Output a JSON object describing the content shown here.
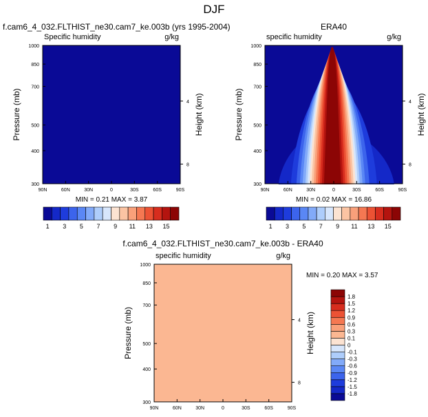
{
  "figure": {
    "title": "DJF"
  },
  "palettes": {
    "abs_colors": [
      "#0a0a96",
      "#1428c8",
      "#1e3cdc",
      "#3c64ec",
      "#5a87f5",
      "#82aaf9",
      "#aecdfb",
      "#d7e6fc",
      "#fce3d2",
      "#fbc4a3",
      "#f9a07a",
      "#f57852",
      "#ec5234",
      "#d72d1e",
      "#b4140f",
      "#8c0505"
    ],
    "abs_labels": [
      "1",
      "3",
      "5",
      "7",
      "9",
      "11",
      "13",
      "15"
    ],
    "diff_colors": [
      "#0a0a96",
      "#1428c8",
      "#1e3cdc",
      "#3c64ec",
      "#5a87f5",
      "#82aaf9",
      "#aecdfb",
      "#d7e6fc",
      "#fce3d2",
      "#fbb792",
      "#f9a07a",
      "#f57852",
      "#ec5234",
      "#d72d1e",
      "#b4140f",
      "#8c0505"
    ],
    "diff_labels": [
      "-1.8",
      "-1.5",
      "-1.2",
      "-0.9",
      "-0.6",
      "-0.3",
      "-0.1",
      "0",
      "0.1",
      "0.3",
      "0.6",
      "0.9",
      "1.2",
      "1.5",
      "1.8"
    ]
  },
  "chart_data": [
    {
      "type": "contour",
      "panel_title": "f.cam6_4_032.FLTHIST_ne30.cam7_ke.003b (yrs 1995-2004)",
      "left_label": "Specific humidity",
      "right_label": "g/kg",
      "ylabel": "Pressure (mb)",
      "ylabel_right": "Height (km)",
      "x_ticks": [
        "90N",
        "60N",
        "30N",
        "0",
        "30S",
        "60S",
        "90S"
      ],
      "xlim": [
        90,
        -90
      ],
      "y_ticks": [
        300,
        400,
        500,
        700,
        850,
        1000
      ],
      "ylim": [
        1000,
        300
      ],
      "height_ticks": [
        {
          "label": "8",
          "pressure": 356
        },
        {
          "label": "4",
          "pressure": 616
        }
      ],
      "fill_level": 0,
      "stats": {
        "min_label": "MIN =",
        "min": "0.21",
        "max_label": "MAX =",
        "max": "3.87"
      }
    },
    {
      "type": "contour",
      "panel_title": "ERA40",
      "left_label": "specific humidity",
      "right_label": "g/kg",
      "ylabel": "Pressure (mb)",
      "ylabel_right": "Height (km)",
      "x_ticks": [
        "90N",
        "60N",
        "30N",
        "0",
        "30S",
        "60S",
        "90S"
      ],
      "xlim": [
        90,
        -90
      ],
      "y_ticks": [
        300,
        400,
        500,
        700,
        850,
        1000
      ],
      "ylim": [
        1000,
        300
      ],
      "height_ticks": [
        {
          "label": "8",
          "pressure": 356
        },
        {
          "label": "4",
          "pressure": 616
        }
      ],
      "peak": {
        "lat": 2,
        "pressure": 1000,
        "value": 16.86
      },
      "stats": {
        "min_label": "MIN =",
        "min": "0.02",
        "max_label": "MAX =",
        "max": "16.86"
      }
    },
    {
      "type": "contour",
      "panel_title": "f.cam6_4_032.FLTHIST_ne30.cam7_ke.003b - ERA40",
      "left_label": "specific humidity",
      "right_label": "g/kg",
      "ylabel": "Pressure (mb)",
      "ylabel_right": "Height (km)",
      "x_ticks": [
        "90N",
        "60N",
        "30N",
        "0",
        "30S",
        "60S",
        "90S"
      ],
      "xlim": [
        90,
        -90
      ],
      "y_ticks": [
        300,
        400,
        500,
        700,
        850,
        1000
      ],
      "ylim": [
        1000,
        300
      ],
      "height_ticks": [
        {
          "label": "8",
          "pressure": 356
        },
        {
          "label": "4",
          "pressure": 616
        }
      ],
      "fill_level": 9,
      "stats": {
        "min_label": "MIN =",
        "min": "0.20",
        "max_label": "MAX =",
        "max": "3.57"
      }
    }
  ]
}
